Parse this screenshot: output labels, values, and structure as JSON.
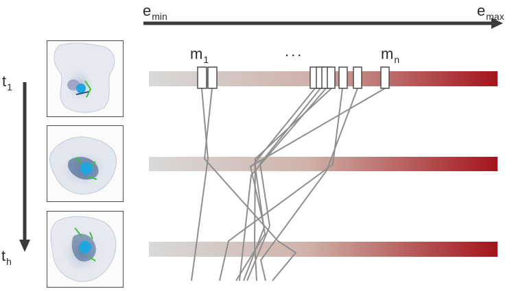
{
  "axis": {
    "energy_min": {
      "main": "e",
      "sub": "min"
    },
    "energy_max": {
      "main": "e",
      "sub": "max"
    },
    "time_start": {
      "main": "t",
      "sub": "1"
    },
    "time_end": {
      "main": "t",
      "sub": "h"
    }
  },
  "markers": {
    "first": {
      "main": "m",
      "sub": "1"
    },
    "ellipsis": "...",
    "last": {
      "main": "m",
      "sub": "n"
    }
  },
  "colors": {
    "bar_start": "#d9d9d9",
    "bar_end": "#a3141b",
    "arrow": "#3a3a3a",
    "trajectory": "#8e8e8e",
    "molecule_accent": "#1fa6e0",
    "molecule_body": "#2a4f80",
    "molecule_green": "#3fbf3f"
  },
  "thumbnails": [
    {
      "icon": "molecule-structure-icon"
    },
    {
      "icon": "molecule-structure-icon"
    },
    {
      "icon": "molecule-structure-icon"
    }
  ]
}
